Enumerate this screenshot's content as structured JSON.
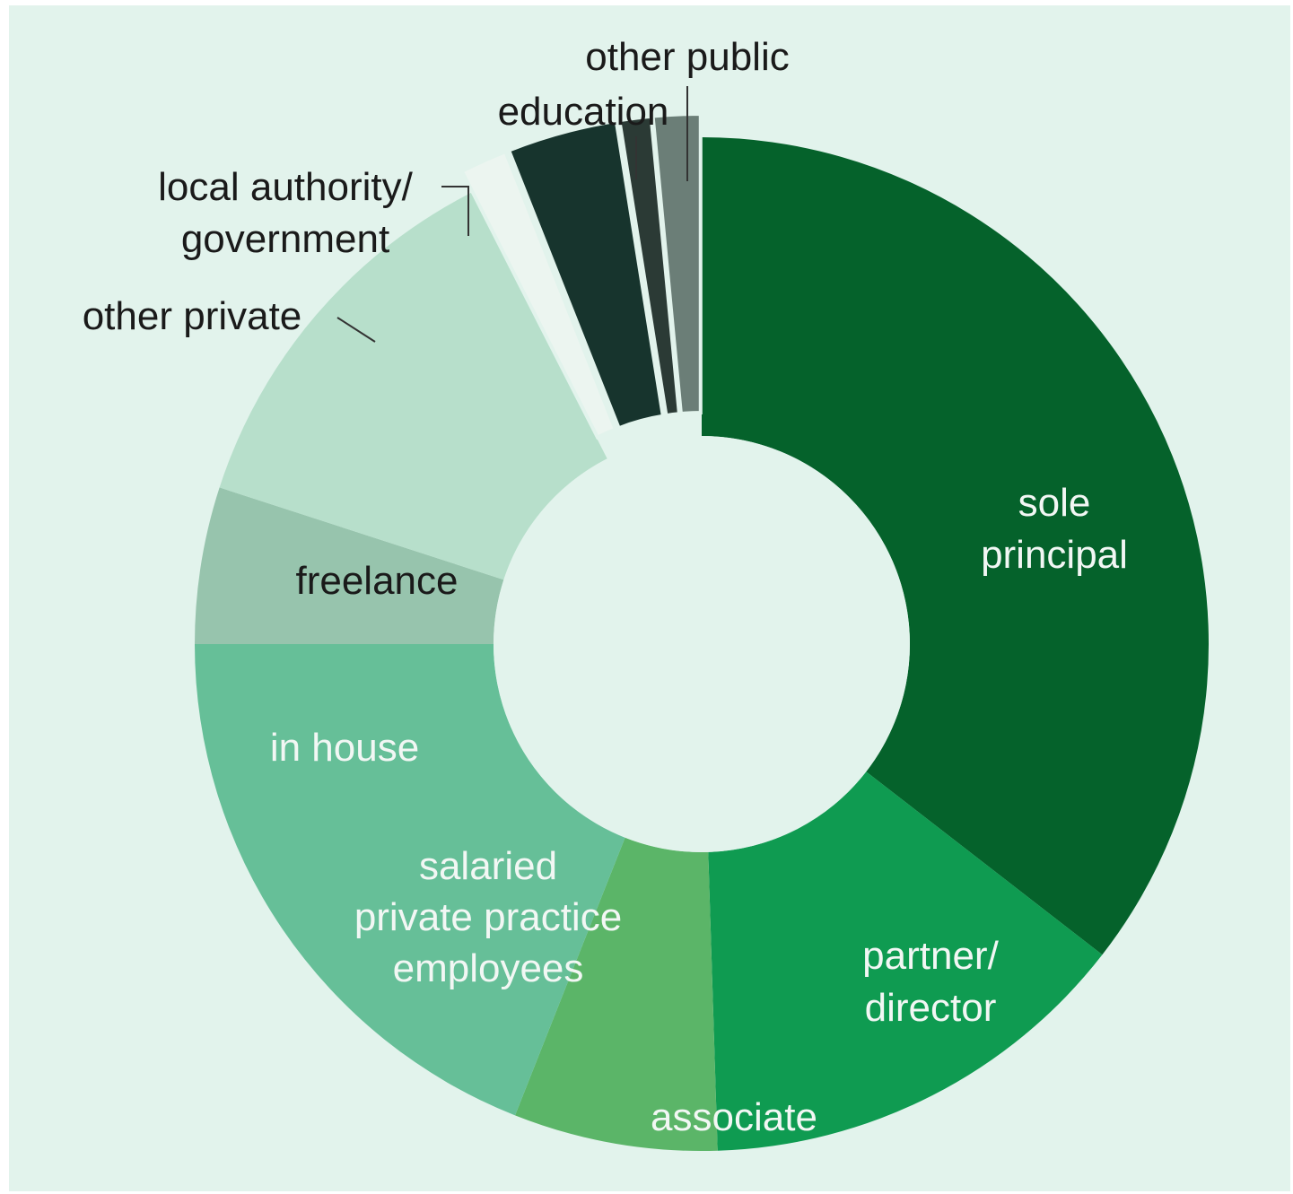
{
  "colors": {
    "panel_background": "#e2f3ec",
    "hole": "#e2f3ec",
    "label_dark": "#1a1a1a",
    "label_light": "#f2f7f4",
    "leader_line": "#333333"
  },
  "chart_data": {
    "type": "pie",
    "variant": "donut",
    "hole_ratio": 0.43,
    "start_angle_deg": 0,
    "direction": "clockwise",
    "title": "",
    "legend": "none (slice labels)",
    "values_unit": "percent (estimated from slice angles)",
    "slices": [
      {
        "key": "sole_principal",
        "label_lines": [
          "sole",
          "principal"
        ],
        "value": 35.5,
        "color": "#05622b",
        "label_color": "light",
        "exploded": false
      },
      {
        "key": "partner_director",
        "label_lines": [
          "partner/",
          "director"
        ],
        "value": 14.0,
        "color": "#0f9b51",
        "label_color": "light",
        "exploded": false
      },
      {
        "key": "associate",
        "label_lines": [
          "associate"
        ],
        "value": 6.5,
        "color": "#5bb568",
        "label_color": "light",
        "exploded": false
      },
      {
        "key": "salaried_private_practice_employees",
        "label_lines": [
          "salaried",
          "private practice",
          "employees"
        ],
        "value": 19.0,
        "color": "#66bf98",
        "label_color": "light",
        "exploded": false
      },
      {
        "key": "in_house",
        "label_lines": [
          "in house"
        ],
        "value": 5.0,
        "color": "#97c4ad",
        "label_color": "light",
        "exploded": false
      },
      {
        "key": "freelance",
        "label_lines": [
          "freelance"
        ],
        "value": 12.5,
        "color": "#b7dfcb",
        "label_color": "dark",
        "exploded": false
      },
      {
        "key": "other_private",
        "label_lines": [
          "other private"
        ],
        "value": 1.5,
        "color": "#ecf5f0",
        "label_color": "dark",
        "exploded": true
      },
      {
        "key": "local_authority_government",
        "label_lines": [
          "local authority/",
          "government"
        ],
        "value": 3.5,
        "color": "#17342d",
        "label_color": "dark",
        "exploded": true
      },
      {
        "key": "education",
        "label_lines": [
          "education"
        ],
        "value": 1.0,
        "color": "#2b3a35",
        "label_color": "dark",
        "exploded": true
      },
      {
        "key": "other_public",
        "label_lines": [
          "other public"
        ],
        "value": 1.5,
        "color": "#6b7e77",
        "label_color": "dark",
        "exploded": true
      }
    ],
    "other_slices_total_note": "",
    "remainder": {
      "key": "unlabeled_dark_grey",
      "value": 0.0
    }
  }
}
